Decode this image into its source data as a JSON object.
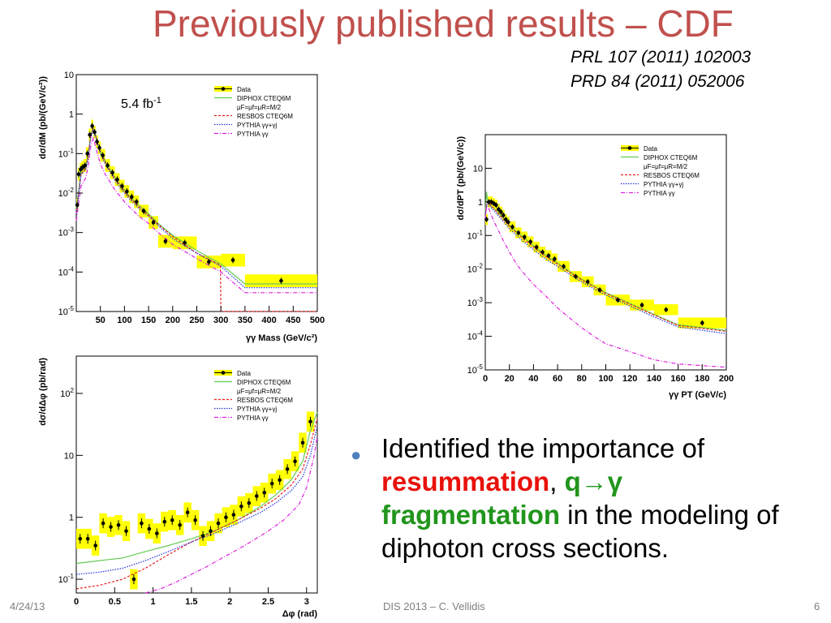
{
  "slide": {
    "title": "Previously published results – CDF",
    "refs": [
      "PRL 107 (2011) 102003",
      "PRD 84 (2011) 052006"
    ],
    "bullet": {
      "text1": "Identified the importance of ",
      "term1": "resummation",
      "sep": ", ",
      "term2": "q→γ",
      "term3": "fragmentation",
      "text2": " in the modeling of diphoton cross sections."
    },
    "footer": {
      "date": "4/24/13",
      "center": "DIS 2013 – C. Vellidis",
      "page": "6"
    }
  },
  "colors": {
    "title": "#c0504d",
    "highlight_red": "#e8120b",
    "highlight_green": "#21951c",
    "bullet": "#4f81bd",
    "band": "#ffff00",
    "diphox": "#66cc55",
    "resbos": "#ee2222",
    "pythia_gg_gj": "#2233dd",
    "pythia_gg": "#dd22dd"
  },
  "chart_data": [
    {
      "type": "line",
      "annotation": "5.4 fb-1",
      "xlabel": "γγ Mass (GeV/c²)",
      "ylabel": "dσ/dM (pb/(GeV/c²))",
      "xlim": [
        0,
        500
      ],
      "ylim": [
        1e-05,
        10
      ],
      "ylog": true,
      "xticks": [
        50,
        100,
        150,
        200,
        250,
        300,
        350,
        400,
        450,
        500
      ],
      "yticks": [
        [
          "10",
          10
        ],
        [
          "1",
          1
        ],
        [
          "10-1",
          0.1
        ],
        [
          "10-2",
          0.01
        ],
        [
          "10-3",
          0.001
        ],
        [
          "10-4",
          0.0001
        ],
        [
          "10-5",
          1e-05
        ]
      ],
      "legend": {
        "position": "top-right",
        "entries": [
          {
            "label": "Data",
            "style": "data"
          },
          {
            "label": "DIPHOX CTEQ6M",
            "style": "diphox"
          },
          {
            "label": "μF=μf=μR=M/2",
            "style": "none"
          },
          {
            "label": "RESBOS CTEQ6M",
            "style": "resbos"
          },
          {
            "label": "PYTHIA γγ+γj",
            "style": "pythia_gg_gj"
          },
          {
            "label": "PYTHIA γγ",
            "style": "pythia_gg"
          }
        ]
      },
      "data": {
        "x": [
          2,
          5,
          9,
          13,
          18,
          23,
          28,
          33,
          38,
          43,
          48,
          55,
          65,
          75,
          85,
          95,
          105,
          115,
          125,
          140,
          160,
          185,
          225,
          275,
          325,
          425
        ],
        "y": [
          0.005,
          0.03,
          0.04,
          0.045,
          0.05,
          0.1,
          0.3,
          0.5,
          0.35,
          0.2,
          0.14,
          0.09,
          0.05,
          0.033,
          0.022,
          0.015,
          0.011,
          0.008,
          0.006,
          0.0035,
          0.0018,
          0.0006,
          0.00055,
          0.00018,
          0.0002,
          6e-05
        ],
        "x_err": [
          2,
          2,
          2,
          2,
          3,
          3,
          2,
          2,
          2,
          2,
          3,
          5,
          5,
          5,
          5,
          5,
          5,
          5,
          5,
          10,
          10,
          15,
          25,
          25,
          25,
          75
        ]
      },
      "series": [
        {
          "name": "DIPHOX CTEQ6M",
          "style": "diphox",
          "x": [
            0,
            10,
            20,
            25,
            30,
            35,
            40,
            45,
            50,
            60,
            70,
            80,
            90,
            100,
            110,
            120,
            130,
            150,
            170,
            200,
            250,
            300,
            350,
            500
          ],
          "y": [
            0.004,
            0.035,
            0.05,
            0.1,
            0.3,
            0.45,
            0.3,
            0.18,
            0.12,
            0.065,
            0.04,
            0.025,
            0.017,
            0.012,
            0.0085,
            0.0063,
            0.0048,
            0.003,
            0.0017,
            0.00085,
            0.00035,
            0.00016,
            5e-05,
            5e-05
          ]
        },
        {
          "name": "RESBOS CTEQ6M",
          "style": "resbos",
          "x": [
            0,
            10,
            20,
            25,
            30,
            35,
            40,
            45,
            50,
            60,
            70,
            80,
            90,
            100,
            110,
            120,
            130,
            150,
            170,
            200,
            250,
            299,
            300,
            500
          ],
          "y": [
            0.003,
            0.03,
            0.045,
            0.09,
            0.28,
            0.42,
            0.28,
            0.17,
            0.11,
            0.06,
            0.037,
            0.023,
            0.016,
            0.011,
            0.008,
            0.006,
            0.0045,
            0.0028,
            0.0016,
            0.0008,
            0.0003,
            0.00015,
            1e-05,
            1e-05
          ]
        },
        {
          "name": "PYTHIA γγ+γj",
          "style": "pythia_gg_gj",
          "x": [
            0,
            10,
            20,
            25,
            30,
            35,
            40,
            45,
            50,
            60,
            70,
            80,
            90,
            100,
            110,
            120,
            130,
            150,
            170,
            200,
            250,
            300,
            350,
            500
          ],
          "y": [
            0.003,
            0.03,
            0.04,
            0.08,
            0.25,
            0.4,
            0.27,
            0.16,
            0.1,
            0.055,
            0.034,
            0.021,
            0.014,
            0.01,
            0.0072,
            0.0054,
            0.0041,
            0.0026,
            0.0015,
            0.0007,
            0.0003,
            0.00014,
            4e-05,
            4e-05
          ]
        },
        {
          "name": "PYTHIA γγ",
          "style": "pythia_gg",
          "x": [
            0,
            10,
            20,
            25,
            30,
            35,
            40,
            45,
            50,
            60,
            70,
            80,
            90,
            100,
            110,
            120,
            130,
            150,
            170,
            200,
            250,
            300,
            350,
            500
          ],
          "y": [
            0.002,
            0.015,
            0.025,
            0.05,
            0.15,
            0.25,
            0.15,
            0.09,
            0.055,
            0.03,
            0.019,
            0.012,
            0.0085,
            0.006,
            0.0045,
            0.0034,
            0.0026,
            0.0017,
            0.001,
            0.0005,
            0.00022,
            0.0001,
            3e-05,
            3e-05
          ]
        }
      ]
    },
    {
      "type": "line",
      "xlabel": "γγ PT (GeV/c)",
      "ylabel": "dσ/dPT (pb/(GeV/c))",
      "xlim": [
        0,
        200
      ],
      "ylim": [
        1e-05,
        100
      ],
      "ylog": true,
      "xticks": [
        0,
        20,
        40,
        60,
        80,
        100,
        120,
        140,
        160,
        180,
        200
      ],
      "yticks": [
        [
          "10",
          10
        ],
        [
          "1",
          1
        ],
        [
          "10-1",
          0.1
        ],
        [
          "10-2",
          0.01
        ],
        [
          "10-3",
          0.001
        ],
        [
          "10-4",
          0.0001
        ],
        [
          "10-5",
          1e-05
        ]
      ],
      "legend": {
        "position": "top-right",
        "entries": [
          {
            "label": "Data",
            "style": "data"
          },
          {
            "label": "DIPHOX CTEQ6M",
            "style": "diphox"
          },
          {
            "label": "μF=μf=μR=M/2",
            "style": "none"
          },
          {
            "label": "RESBOS CTEQ6M",
            "style": "resbos"
          },
          {
            "label": "PYTHIA γγ+γj",
            "style": "pythia_gg_gj"
          },
          {
            "label": "PYTHIA γγ",
            "style": "pythia_gg"
          }
        ]
      },
      "data": {
        "x": [
          1,
          3,
          5,
          7,
          9,
          11,
          13,
          15,
          17,
          19,
          22.5,
          27.5,
          32.5,
          37.5,
          42.5,
          47.5,
          52.5,
          57.5,
          65,
          75,
          85,
          95,
          110,
          130,
          150,
          180
        ],
        "y": [
          0.3,
          1.0,
          1.0,
          0.9,
          0.8,
          0.6,
          0.5,
          0.4,
          0.3,
          0.25,
          0.18,
          0.12,
          0.09,
          0.065,
          0.045,
          0.032,
          0.025,
          0.02,
          0.012,
          0.006,
          0.0042,
          0.0024,
          0.0012,
          0.00085,
          0.00062,
          0.00025
        ],
        "x_err": [
          1,
          1,
          1,
          1,
          1,
          1,
          1,
          1,
          1,
          1,
          2.5,
          2.5,
          2.5,
          2.5,
          2.5,
          2.5,
          2.5,
          2.5,
          5,
          5,
          5,
          5,
          10,
          10,
          10,
          20
        ]
      },
      "series": [
        {
          "name": "DIPHOX CTEQ6M",
          "style": "diphox",
          "x": [
            0,
            1,
            2,
            4,
            6,
            10,
            15,
            20,
            25,
            30,
            40,
            50,
            60,
            70,
            80,
            90,
            100,
            120,
            140,
            160,
            200
          ],
          "y": [
            0.5,
            2.0,
            1.0,
            0.8,
            0.7,
            0.5,
            0.32,
            0.2,
            0.14,
            0.1,
            0.05,
            0.026,
            0.015,
            0.0085,
            0.005,
            0.0031,
            0.002,
            0.00095,
            0.00045,
            0.00022,
            0.00015
          ]
        },
        {
          "name": "RESBOS CTEQ6M",
          "style": "resbos",
          "x": [
            0,
            1,
            2,
            4,
            6,
            10,
            15,
            20,
            25,
            30,
            40,
            50,
            60,
            70,
            80,
            90,
            100,
            120,
            140,
            160,
            200
          ],
          "y": [
            0.4,
            0.9,
            1.0,
            0.85,
            0.7,
            0.48,
            0.3,
            0.19,
            0.13,
            0.09,
            0.045,
            0.024,
            0.014,
            0.008,
            0.0048,
            0.003,
            0.0019,
            0.0009,
            0.00043,
            0.00021,
            0.00014
          ]
        },
        {
          "name": "PYTHIA γγ+γj",
          "style": "pythia_gg_gj",
          "x": [
            0,
            1,
            2,
            4,
            6,
            10,
            15,
            20,
            25,
            30,
            40,
            50,
            60,
            70,
            80,
            90,
            100,
            120,
            140,
            160,
            200
          ],
          "y": [
            0.35,
            0.8,
            0.9,
            0.75,
            0.6,
            0.42,
            0.26,
            0.16,
            0.11,
            0.075,
            0.038,
            0.02,
            0.012,
            0.007,
            0.0042,
            0.0026,
            0.0017,
            0.0008,
            0.00038,
            0.00019,
            0.00012
          ]
        },
        {
          "name": "PYTHIA γγ",
          "style": "pythia_gg",
          "x": [
            0,
            1,
            2,
            4,
            6,
            10,
            15,
            20,
            25,
            30,
            40,
            50,
            60,
            70,
            80,
            90,
            100,
            120,
            140,
            160,
            200
          ],
          "y": [
            0.3,
            0.7,
            0.75,
            0.5,
            0.33,
            0.16,
            0.07,
            0.032,
            0.016,
            0.009,
            0.0035,
            0.0016,
            0.0007,
            0.00035,
            0.00018,
            0.0001,
            6e-05,
            3.5e-05,
            2e-05,
            1.5e-05,
            1.2e-05
          ]
        }
      ]
    },
    {
      "type": "line",
      "xlabel": "Δφ (rad)",
      "ylabel": "dσ/dΔφ (pb/rad)",
      "xlim": [
        0,
        3.14
      ],
      "ylim": [
        0.06,
        400
      ],
      "ylog": true,
      "xticks": [
        0,
        0.5,
        1,
        1.5,
        2,
        2.5,
        3
      ],
      "xtick_labels": [
        "0",
        "0.5",
        "1",
        "1.5",
        "2",
        "2.5",
        "3"
      ],
      "yticks": [
        [
          "102",
          100
        ],
        [
          "10",
          10
        ],
        [
          "1",
          1
        ],
        [
          "10-1",
          0.1
        ]
      ],
      "legend": {
        "position": "top-right",
        "entries": [
          {
            "label": "Data",
            "style": "data"
          },
          {
            "label": "DIPHOX CTEQ6M",
            "style": "diphox"
          },
          {
            "label": "μF=μf=μR=M/2",
            "style": "none"
          },
          {
            "label": "RESBOS CTEQ6M",
            "style": "resbos"
          },
          {
            "label": "PYTHIA γγ+γj",
            "style": "pythia_gg_gj"
          },
          {
            "label": "PYTHIA γγ",
            "style": "pythia_gg"
          }
        ]
      },
      "data": {
        "x": [
          0.05,
          0.15,
          0.25,
          0.35,
          0.45,
          0.55,
          0.65,
          0.75,
          0.85,
          0.95,
          1.05,
          1.15,
          1.25,
          1.35,
          1.45,
          1.55,
          1.65,
          1.75,
          1.85,
          1.95,
          2.05,
          2.15,
          2.25,
          2.35,
          2.45,
          2.55,
          2.65,
          2.75,
          2.85,
          2.95,
          3.05
        ],
        "y": [
          0.45,
          0.45,
          0.35,
          0.8,
          0.7,
          0.75,
          0.6,
          0.1,
          0.8,
          0.65,
          0.55,
          0.85,
          0.9,
          0.75,
          1.2,
          0.9,
          0.5,
          0.6,
          0.8,
          1.0,
          1.1,
          1.5,
          1.7,
          2.2,
          2.5,
          3.5,
          4.0,
          6.0,
          8.0,
          16.0,
          35.0
        ]
      },
      "series": [
        {
          "name": "DIPHOX CTEQ6M",
          "style": "diphox",
          "x": [
            0,
            0.3,
            0.6,
            0.9,
            1.2,
            1.5,
            1.8,
            2.1,
            2.4,
            2.6,
            2.8,
            2.95,
            3.05,
            3.14
          ],
          "y": [
            0.18,
            0.2,
            0.22,
            0.28,
            0.35,
            0.45,
            0.6,
            0.9,
            1.5,
            2.3,
            4.0,
            8.0,
            25.0,
            50.0
          ]
        },
        {
          "name": "RESBOS CTEQ6M",
          "style": "resbos",
          "x": [
            0,
            0.3,
            0.6,
            0.9,
            1.2,
            1.5,
            1.8,
            2.1,
            2.4,
            2.6,
            2.8,
            2.95,
            3.05,
            3.14
          ],
          "y": [
            0.07,
            0.08,
            0.1,
            0.15,
            0.25,
            0.4,
            0.6,
            0.9,
            1.4,
            2.0,
            3.3,
            6.0,
            15.0,
            40.0
          ]
        },
        {
          "name": "PYTHIA γγ+γj",
          "style": "pythia_gg_gj",
          "x": [
            0,
            0.3,
            0.6,
            0.9,
            1.2,
            1.5,
            1.8,
            2.1,
            2.4,
            2.6,
            2.8,
            2.95,
            3.05,
            3.14
          ],
          "y": [
            0.12,
            0.13,
            0.15,
            0.2,
            0.28,
            0.4,
            0.55,
            0.8,
            1.2,
            1.7,
            2.7,
            4.5,
            10.0,
            30.0
          ]
        },
        {
          "name": "PYTHIA γγ",
          "style": "pythia_gg",
          "x": [
            0.9,
            1.1,
            1.3,
            1.5,
            1.7,
            1.9,
            2.1,
            2.3,
            2.5,
            2.7,
            2.9,
            3.0,
            3.1,
            3.14
          ],
          "y": [
            0.06,
            0.07,
            0.09,
            0.12,
            0.16,
            0.22,
            0.3,
            0.42,
            0.6,
            0.9,
            1.6,
            3.0,
            10.0,
            20.0
          ]
        }
      ]
    }
  ]
}
